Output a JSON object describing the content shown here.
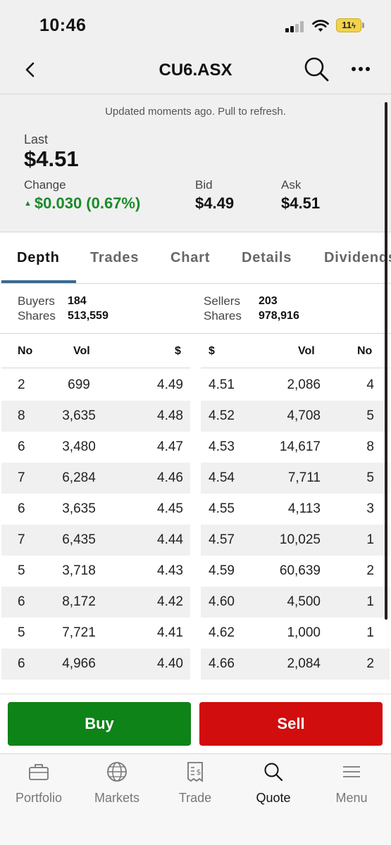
{
  "status_bar": {
    "time": "10:46",
    "battery": "11"
  },
  "nav": {
    "title": "CU6.ASX"
  },
  "quote": {
    "refresh_note": "Updated moments ago. Pull to refresh.",
    "last_label": "Last",
    "last_value": "$4.51",
    "change_label": "Change",
    "change_value": "$0.030 (0.67%)",
    "bid_label": "Bid",
    "bid_value": "$4.49",
    "ask_label": "Ask",
    "ask_value": "$4.51",
    "positive_color": "#1c8a2a"
  },
  "tabs": [
    {
      "label": "Depth",
      "active": true
    },
    {
      "label": "Trades",
      "active": false
    },
    {
      "label": "Chart",
      "active": false
    },
    {
      "label": "Details",
      "active": false
    },
    {
      "label": "Dividends",
      "active": false
    }
  ],
  "summary": {
    "buyers_label": "Buyers",
    "buyers_value": "184",
    "buyer_shares_label": "Shares",
    "buyer_shares_value": "513,559",
    "sellers_label": "Sellers",
    "sellers_value": "203",
    "seller_shares_label": "Shares",
    "seller_shares_value": "978,916"
  },
  "depth_table": {
    "buy_headers": [
      "No",
      "Vol",
      "$"
    ],
    "sell_headers": [
      "$",
      "Vol",
      "No"
    ],
    "buy_rows": [
      {
        "no": "2",
        "vol": "699",
        "price": "4.49"
      },
      {
        "no": "8",
        "vol": "3,635",
        "price": "4.48"
      },
      {
        "no": "6",
        "vol": "3,480",
        "price": "4.47"
      },
      {
        "no": "7",
        "vol": "6,284",
        "price": "4.46"
      },
      {
        "no": "6",
        "vol": "3,635",
        "price": "4.45"
      },
      {
        "no": "7",
        "vol": "6,435",
        "price": "4.44"
      },
      {
        "no": "5",
        "vol": "3,718",
        "price": "4.43"
      },
      {
        "no": "6",
        "vol": "8,172",
        "price": "4.42"
      },
      {
        "no": "5",
        "vol": "7,721",
        "price": "4.41"
      },
      {
        "no": "6",
        "vol": "4,966",
        "price": "4.40"
      }
    ],
    "sell_rows": [
      {
        "price": "4.51",
        "vol": "2,086",
        "no": "4"
      },
      {
        "price": "4.52",
        "vol": "4,708",
        "no": "5"
      },
      {
        "price": "4.53",
        "vol": "14,617",
        "no": "8"
      },
      {
        "price": "4.54",
        "vol": "7,711",
        "no": "5"
      },
      {
        "price": "4.55",
        "vol": "4,113",
        "no": "3"
      },
      {
        "price": "4.57",
        "vol": "10,025",
        "no": "1"
      },
      {
        "price": "4.59",
        "vol": "60,639",
        "no": "2"
      },
      {
        "price": "4.60",
        "vol": "4,500",
        "no": "1"
      },
      {
        "price": "4.62",
        "vol": "1,000",
        "no": "1"
      },
      {
        "price": "4.66",
        "vol": "2,084",
        "no": "2"
      }
    ]
  },
  "actions": {
    "buy_label": "Buy",
    "sell_label": "Sell",
    "buy_color": "#0e8317",
    "sell_color": "#d10d0d"
  },
  "bottom_nav": [
    {
      "label": "Portfolio",
      "icon": "briefcase-icon",
      "active": false
    },
    {
      "label": "Markets",
      "icon": "globe-icon",
      "active": false
    },
    {
      "label": "Trade",
      "icon": "receipt-icon",
      "active": false
    },
    {
      "label": "Quote",
      "icon": "search-icon",
      "active": true
    },
    {
      "label": "Menu",
      "icon": "hamburger-icon",
      "active": false
    }
  ]
}
